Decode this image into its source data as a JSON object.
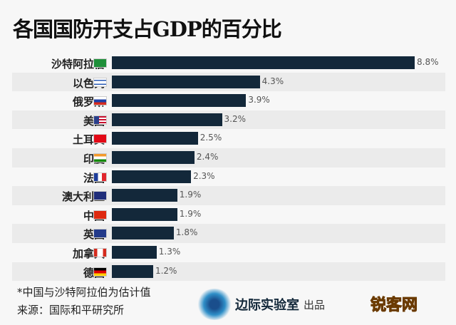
{
  "chart_data": {
    "type": "bar",
    "orientation": "horizontal",
    "title": "各国国防开支占GDP的百分比",
    "categories": [
      "沙特阿拉伯",
      "以色列",
      "俄罗斯",
      "美国",
      "土耳其",
      "印度",
      "法国",
      "澳大利亚",
      "中国",
      "英国",
      "加拿大",
      "德国"
    ],
    "values": [
      8.8,
      4.3,
      3.9,
      3.2,
      2.5,
      2.4,
      2.3,
      1.9,
      1.9,
      1.8,
      1.3,
      1.2
    ],
    "labels": [
      "8.8%",
      "4.3%",
      "3.9%",
      "3.2%",
      "2.5%",
      "2.4%",
      "2.3%",
      "1.9%",
      "1.9%",
      "1.8%",
      "1.3%",
      "1.2%"
    ],
    "flags": [
      "saudi-flag",
      "israel-flag",
      "russia-flag",
      "usa-flag",
      "turkey-flag",
      "india-flag",
      "france-flag",
      "australia-flag",
      "china-flag",
      "uk-flag",
      "canada-flag",
      "germany-flag"
    ],
    "bar_color": "#13283a",
    "xlim": [
      0,
      8.8
    ]
  },
  "footer": {
    "note": "*中国与沙特阿拉伯为估计值",
    "source": "来源：国际和平研究所",
    "logo_name": "边际实验室",
    "logo_sub": "出品",
    "watermark": "锐客网"
  }
}
